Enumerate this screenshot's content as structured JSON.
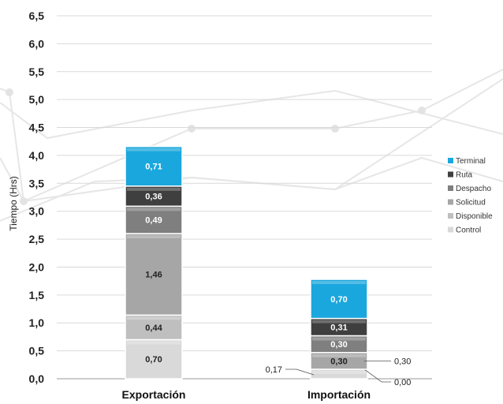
{
  "chart_data": {
    "type": "bar",
    "stacked": true,
    "categories": [
      "Exportación",
      "Importación"
    ],
    "ylabel": "Tiempo (Hrs)",
    "xlabel": "",
    "ylim": [
      0,
      6.5
    ],
    "yticks": [
      "0,0",
      "0,5",
      "1,0",
      "1,5",
      "2,0",
      "2,5",
      "3,0",
      "3,5",
      "4,0",
      "4,5",
      "5,0",
      "5,5",
      "6,0",
      "6,5"
    ],
    "grid": true,
    "legend_position": "right",
    "series": [
      {
        "name": "Control",
        "color": "#d9d9d9",
        "text_color": "#222222",
        "values": [
          0.7,
          0.17
        ],
        "labels": [
          "0,70",
          "0,17"
        ]
      },
      {
        "name": "Disponible",
        "color": "#bfbfbf",
        "text_color": "#222222",
        "values": [
          0.44,
          0.0
        ],
        "labels": [
          "0,44",
          "0,00"
        ]
      },
      {
        "name": "Solicitud",
        "color": "#a6a6a6",
        "text_color": "#222222",
        "values": [
          1.46,
          0.3
        ],
        "labels": [
          "1,46",
          "0,30"
        ]
      },
      {
        "name": "Despacho",
        "color": "#7f7f7f",
        "text_color": "#ffffff",
        "values": [
          0.49,
          0.3
        ],
        "labels": [
          "0,49",
          "0,30"
        ]
      },
      {
        "name": "Ruta",
        "color": "#3f3f3f",
        "text_color": "#ffffff",
        "values": [
          0.36,
          0.31
        ],
        "labels": [
          "0,36",
          "0,31"
        ]
      },
      {
        "name": "Terminal",
        "color": "#1aa7dd",
        "text_color": "#ffffff",
        "values": [
          0.71,
          0.7
        ],
        "labels": [
          "0,71",
          "0,70"
        ]
      }
    ],
    "legend_order": [
      "Terminal",
      "Ruta",
      "Despacho",
      "Solicitud",
      "Disponible",
      "Control"
    ]
  }
}
